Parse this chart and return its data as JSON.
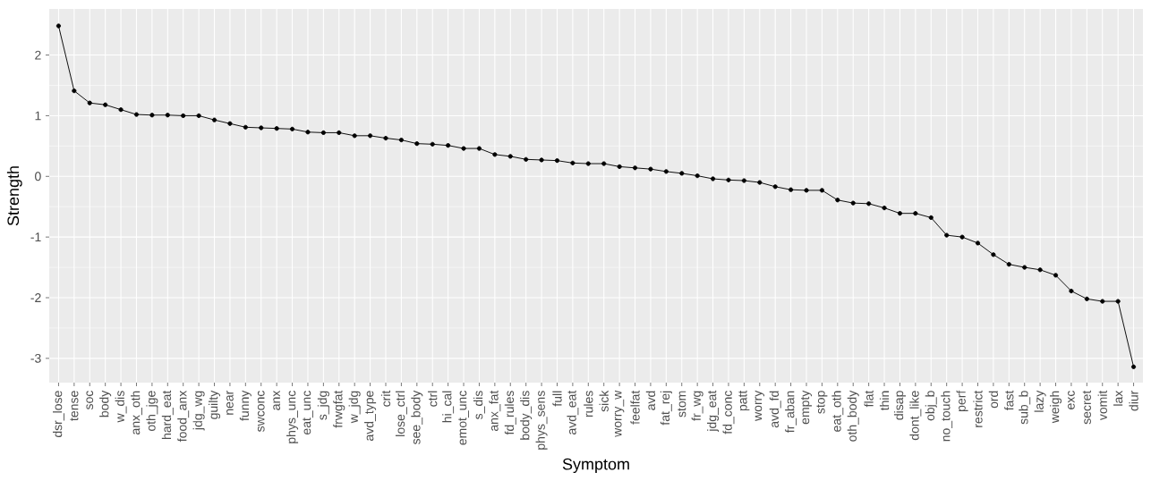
{
  "chart_data": {
    "type": "line",
    "xlabel": "Symptom",
    "ylabel": "Strength",
    "categories": [
      "dsr_lose",
      "tense",
      "soc",
      "body",
      "w_dis",
      "anx_oth",
      "oth_jge",
      "hard_eat",
      "food_anx",
      "jdg_wg",
      "guilty",
      "near",
      "funny",
      "swconc",
      "anx",
      "phys_unc",
      "eat_unc",
      "s_jdg",
      "frwgfat",
      "w_jdg",
      "avd_type",
      "crit",
      "lose_ctrl",
      "see_body",
      "ctrl",
      "hi_cal",
      "emot_unc",
      "s_dis",
      "anx_fat",
      "fd_rules",
      "body_dis",
      "phys_sens",
      "full",
      "avd_eat",
      "rules",
      "sick",
      "worry_w",
      "feelfat",
      "avd",
      "fat_rej",
      "stom",
      "fr_wg",
      "jdg_eat",
      "fd_conc",
      "patt",
      "worry",
      "avd_fd",
      "fr_aban",
      "empty",
      "stop",
      "eat_oth",
      "oth_body",
      "flat",
      "thin",
      "disap",
      "dont_like",
      "obj_b",
      "no_touch",
      "perf",
      "restrict",
      "ord",
      "fast",
      "sub_b",
      "lazy",
      "weigh",
      "exc",
      "secret",
      "vomit",
      "lax",
      "diur"
    ],
    "values": [
      2.48,
      1.41,
      1.21,
      1.18,
      1.1,
      1.02,
      1.01,
      1.01,
      1.0,
      1.0,
      0.93,
      0.87,
      0.81,
      0.8,
      0.79,
      0.78,
      0.73,
      0.72,
      0.72,
      0.67,
      0.67,
      0.63,
      0.6,
      0.54,
      0.53,
      0.51,
      0.46,
      0.46,
      0.36,
      0.33,
      0.28,
      0.27,
      0.26,
      0.22,
      0.21,
      0.21,
      0.16,
      0.14,
      0.12,
      0.08,
      0.05,
      0.01,
      -0.04,
      -0.06,
      -0.07,
      -0.1,
      -0.17,
      -0.22,
      -0.23,
      -0.23,
      -0.39,
      -0.44,
      -0.45,
      -0.52,
      -0.61,
      -0.61,
      -0.68,
      -0.97,
      -1.0,
      -1.1,
      -1.29,
      -1.45,
      -1.5,
      -1.54,
      -1.63,
      -1.89,
      -2.02,
      -2.06,
      -2.06,
      -3.14
    ],
    "color": "#000000",
    "ylim": [
      -3.4,
      2.76
    ],
    "yticks": [
      -3,
      -2,
      -1,
      0,
      1,
      2
    ],
    "grid": true,
    "marker": "circle",
    "line_style": "solid"
  }
}
